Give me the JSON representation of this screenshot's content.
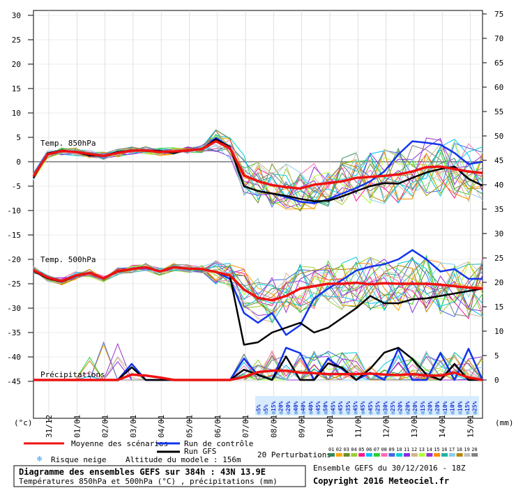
{
  "chart_data": {
    "type": "line",
    "left_axis": {
      "unit": "(°c)",
      "ticks": [
        30,
        25,
        20,
        15,
        10,
        5,
        0,
        -5,
        -10,
        -15,
        -20,
        -25,
        -30,
        -35,
        -40,
        -45
      ]
    },
    "right_axis": {
      "unit": "(mm)",
      "ticks": [
        75,
        70,
        65,
        60,
        55,
        50,
        45,
        40,
        35,
        30,
        25,
        20,
        15,
        10,
        5,
        0
      ]
    },
    "dates": [
      "31/12",
      "01/01",
      "02/01",
      "03/01",
      "04/01",
      "05/01",
      "06/01",
      "07/01",
      "08/01",
      "09/01",
      "10/01",
      "11/01",
      "12/01",
      "13/01",
      "14/01",
      "15/01"
    ],
    "panel_labels": {
      "t850": "Temp. 850hPa",
      "t500": "Temp. 500hPa",
      "precip": "Précipitations"
    },
    "snow_risk": [
      "5%",
      "5%",
      "15%",
      "20%",
      "20%",
      "40%",
      "40%",
      "40%",
      "45%",
      "50%",
      "45%",
      "45%",
      "35%",
      "45%",
      "45%",
      "45%",
      "25%",
      "30%",
      "25%",
      "20%",
      "20%",
      "20%",
      "15%",
      "20%",
      "20%",
      "10%",
      "10%",
      "10%",
      "15%",
      "25%"
    ],
    "series": [
      {
        "name": "Moyenne des scénarios",
        "color": "#ee1111",
        "t850": [
          -3,
          1.5,
          2.2,
          2,
          1.6,
          1.2,
          1.8,
          2.3,
          2.3,
          2,
          2.1,
          2.3,
          2.6,
          4.2,
          2.8,
          -2.8,
          -4,
          -4.8,
          -5.2,
          -5.5,
          -4.7,
          -4.4,
          -4,
          -3.3,
          -3.1,
          -2.9,
          -2.6,
          -2,
          -1.1,
          -1,
          -1.5,
          -2,
          -2.3
        ],
        "t500": [
          -22.2,
          -23.7,
          -24.5,
          -23.3,
          -22.8,
          -23.9,
          -22.4,
          -22,
          -21.6,
          -22.5,
          -21.6,
          -21.9,
          -22,
          -22.6,
          -23.3,
          -26.2,
          -27.9,
          -28.4,
          -27.5,
          -26,
          -25.5,
          -25,
          -25,
          -24.8,
          -25.1,
          -24.9,
          -25,
          -25,
          -25,
          -25.2,
          -25.5,
          -25.8,
          -26
        ],
        "precip": [
          0,
          0,
          0,
          0,
          0,
          0,
          0,
          1.1,
          0.9,
          0.5,
          0,
          0,
          0,
          0,
          0,
          0.6,
          1.6,
          1.9,
          1.9,
          1.5,
          1.4,
          1.2,
          1.2,
          1.2,
          1.3,
          1.1,
          1,
          1.2,
          0.9,
          0.9,
          1.5,
          0.5,
          0
        ]
      },
      {
        "name": "Run de contrôle",
        "color": "#1133ee",
        "t850": [
          -3.3,
          1.7,
          2.3,
          2,
          1.3,
          1.2,
          2,
          2.3,
          2.3,
          2.2,
          1.8,
          2.4,
          2.5,
          4.9,
          3,
          -5,
          -6,
          -6.5,
          -7.2,
          -8.2,
          -8.5,
          -7.7,
          -6.5,
          -5.4,
          -4,
          -2,
          1.5,
          4.2,
          3.9,
          3.5,
          1.8,
          -0.5,
          0
        ],
        "t500": [
          -22.4,
          -23.9,
          -24.6,
          -23.4,
          -22.8,
          -23.9,
          -22.5,
          -22,
          -21.6,
          -22.5,
          -21.6,
          -21.9,
          -22,
          -22.6,
          -24,
          -31,
          -33,
          -31,
          -35.5,
          -33.5,
          -28,
          -26,
          -24.2,
          -22.3,
          -21.5,
          -21,
          -20,
          -18.1,
          -20,
          -22.5,
          -22,
          -24,
          -24
        ],
        "precip": [
          0,
          0,
          0,
          0,
          0,
          0,
          0,
          3.3,
          0,
          0,
          0,
          0,
          0,
          0,
          0,
          4.4,
          1,
          0,
          6.6,
          5.5,
          0,
          4.4,
          2.2,
          0,
          1.5,
          0,
          6.4,
          0,
          0,
          5.5,
          0,
          6.4,
          0
        ]
      },
      {
        "name": "Run GFS",
        "color": "#000000",
        "t850": [
          -3.3,
          1.7,
          2.3,
          2,
          1.3,
          1.2,
          2,
          2.3,
          2.3,
          2.2,
          1.8,
          2.4,
          2.5,
          4.6,
          3,
          -5,
          -6,
          -6.5,
          -7,
          -7.6,
          -8.1,
          -8,
          -7.1,
          -6,
          -5,
          -4.4,
          -4.5,
          -3.3,
          -2.2,
          -1.5,
          -1,
          -3.5,
          -4.9
        ],
        "t500": [
          -22.4,
          -23.9,
          -24.6,
          -23.4,
          -22.8,
          -23.9,
          -22.5,
          -22,
          -21.6,
          -22.5,
          -21.6,
          -21.9,
          -22,
          -22.6,
          -23.4,
          -37.5,
          -37,
          -35,
          -34,
          -33,
          -35,
          -34,
          -32,
          -30,
          -27.5,
          -29,
          -29,
          -28.2,
          -28,
          -27.5,
          -27,
          -26.5,
          -26
        ],
        "precip": [
          0,
          0,
          0,
          0,
          0,
          0,
          0,
          2.6,
          0,
          0,
          0,
          0,
          0,
          0,
          0,
          2.1,
          1.1,
          0,
          4.8,
          0,
          0,
          3.4,
          2.5,
          0,
          2.3,
          5.6,
          6.6,
          4.3,
          1.1,
          0,
          3.3,
          0,
          0
        ]
      }
    ],
    "legend": {
      "mean": "Moyenne des scénarios",
      "control": "Run de contrôle",
      "gfs": "Run GFS",
      "snow": "Risque neige",
      "altitude": "Altitude du modele : 156m",
      "perturbations": "20 Perturbations",
      "perturbation_numbers": [
        "01",
        "02",
        "03",
        "04",
        "05",
        "06",
        "07",
        "08",
        "09",
        "10",
        "11",
        "12",
        "13",
        "14",
        "15",
        "16",
        "17",
        "18",
        "19",
        "20"
      ],
      "perturbation_colors": [
        "#2e8b57",
        "#ffa500",
        "#6b8e23",
        "#9acd32",
        "#ff1493",
        "#00bfff",
        "#32cd32",
        "#ff69b4",
        "#4169e1",
        "#00ced1",
        "#8a2be2",
        "#d2b48c",
        "#adff2f",
        "#9932cc",
        "#ff8c00",
        "#20b2aa",
        "#87ceeb",
        "#b8860b",
        "#c0c0c0",
        "#808080"
      ]
    },
    "title": "Diagramme des ensembles GEFS sur 384h : 43N 13.9E",
    "subtitle": "Températures 850hPa et 500hPa (°C) , précipitations (mm)",
    "run_info": "Ensemble GEFS du 30/12/2016 - 18Z",
    "copyright": "Copyright 2016 Meteociel.fr",
    "colors": {
      "snow_band": "#d9ecff",
      "snow_text": "#1a33cc",
      "grid": "#000000"
    }
  }
}
